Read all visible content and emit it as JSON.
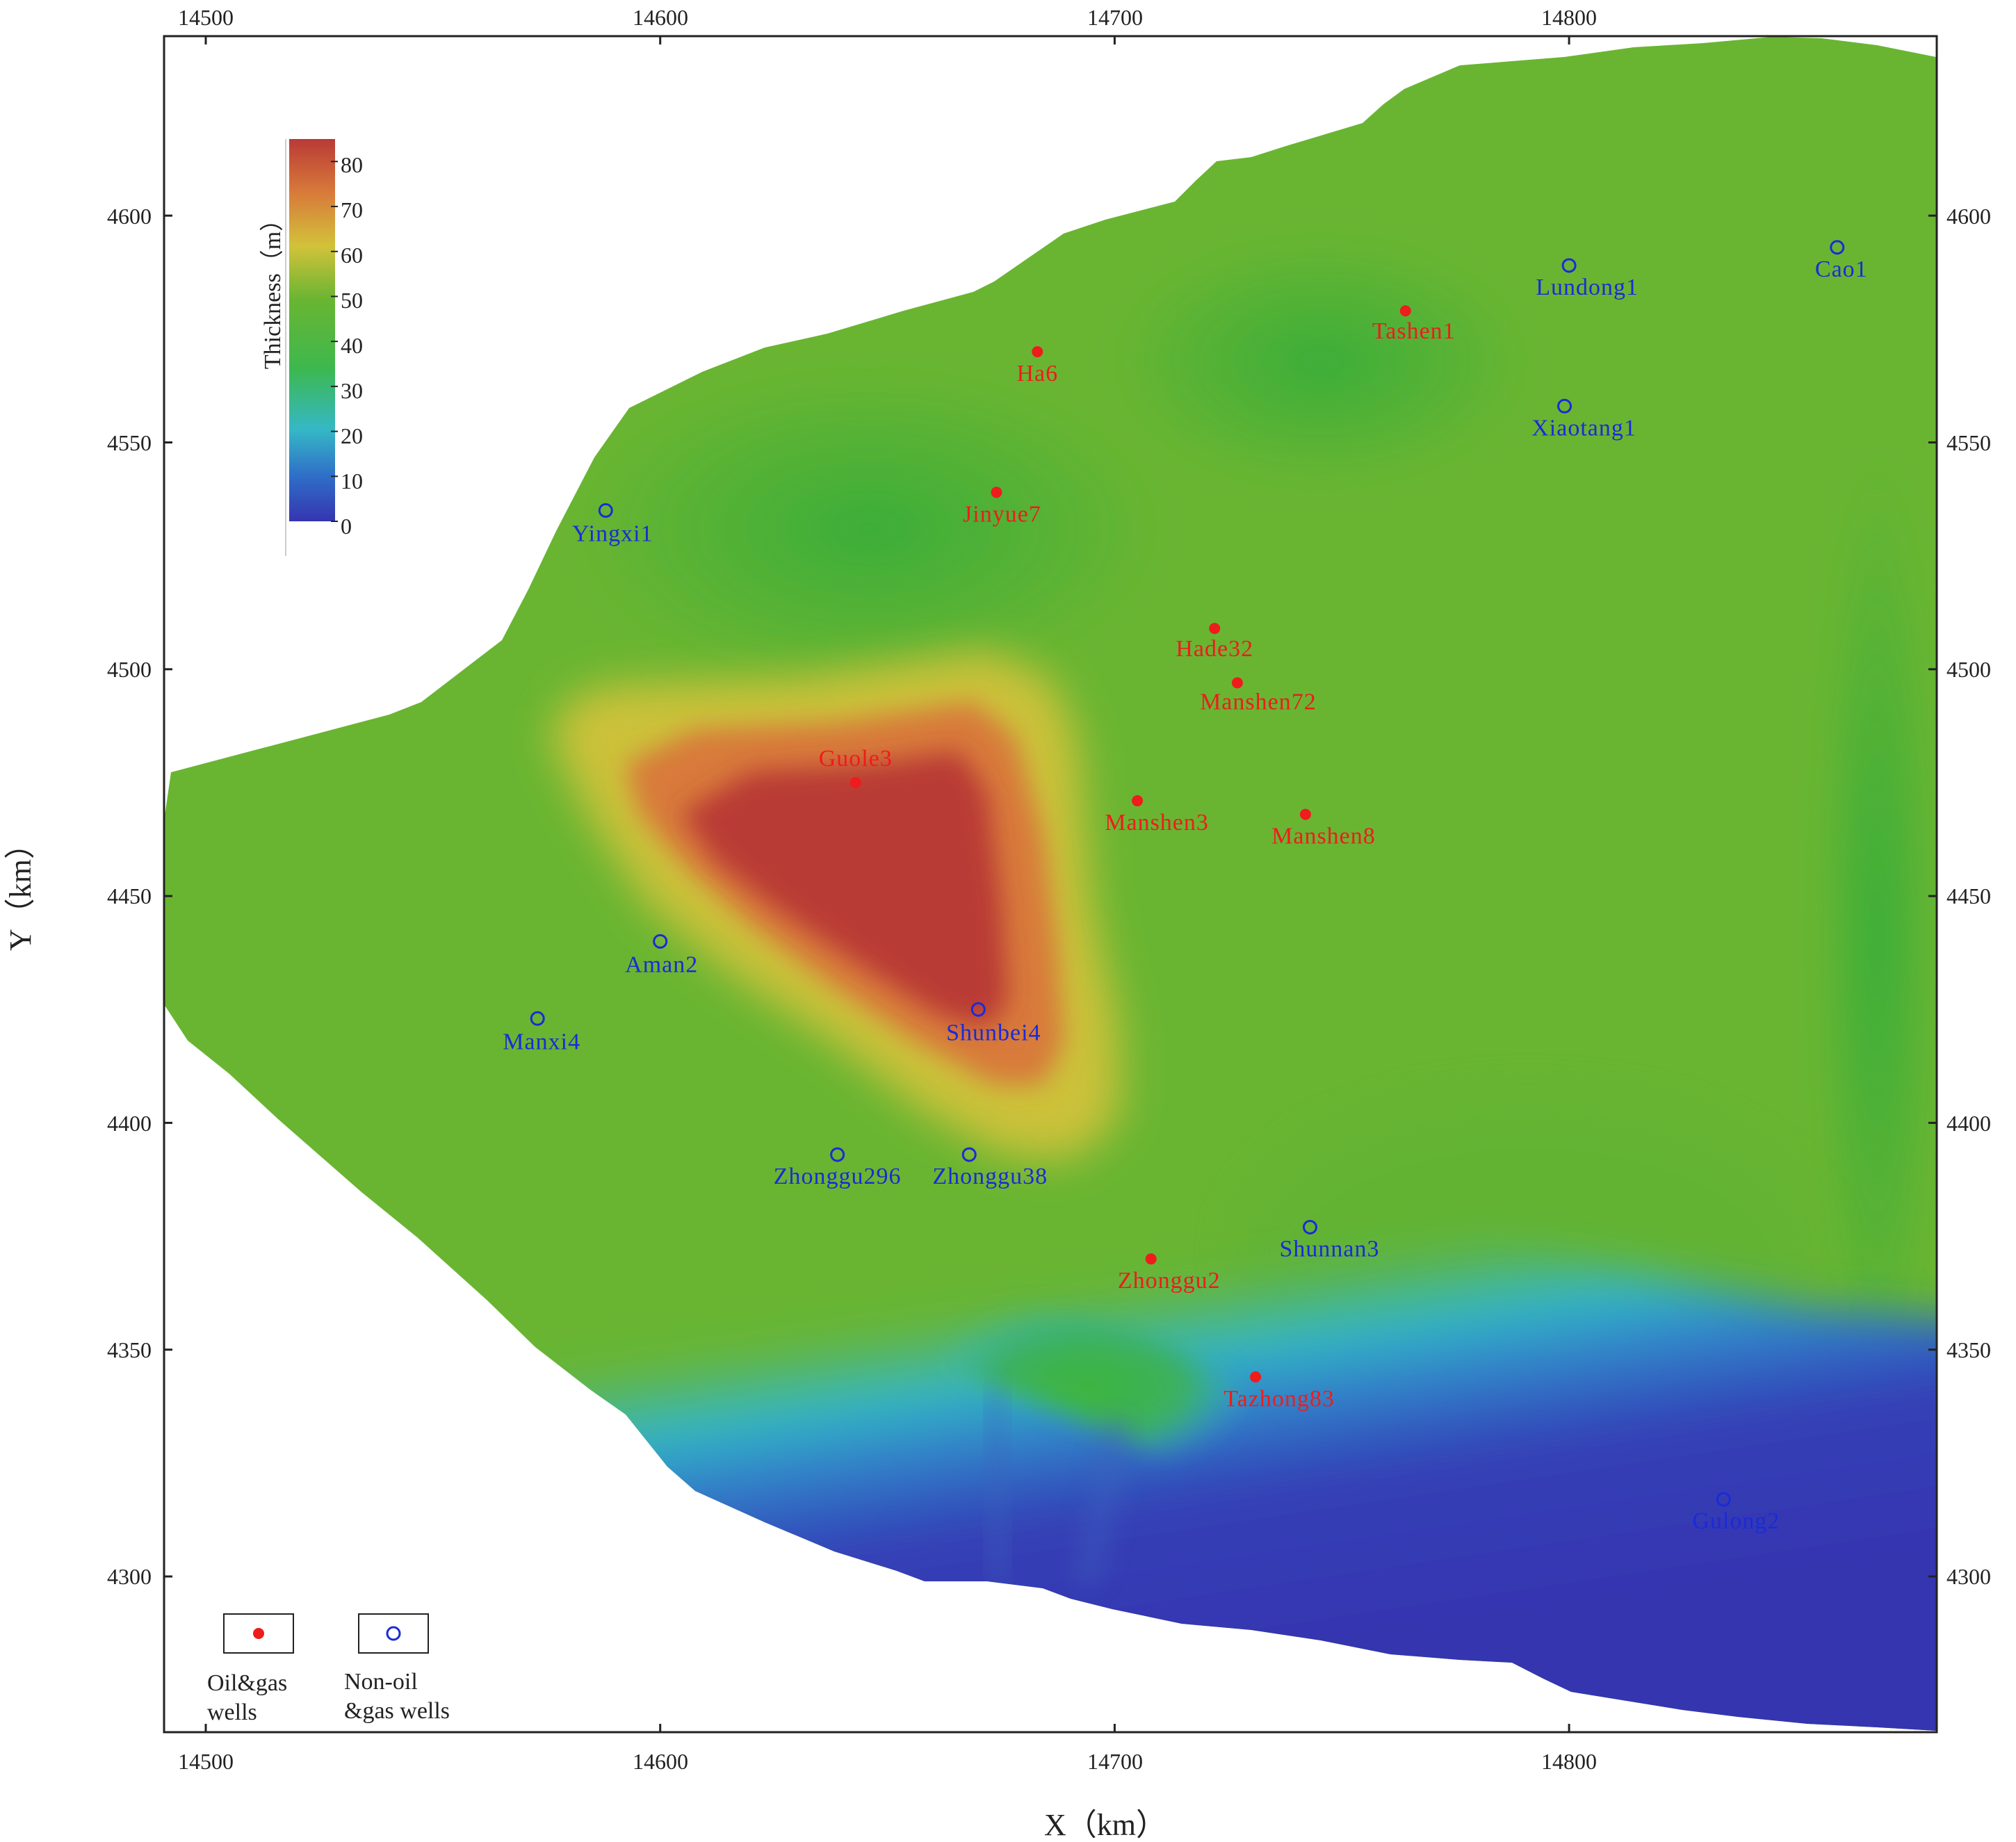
{
  "axes": {
    "x_title": "X（km）",
    "y_title": "Y（km）",
    "x_range": [
      14490,
      14880
    ],
    "y_range": [
      4265,
      4640
    ],
    "x_ticks": [
      "14500",
      "14600",
      "14700",
      "14800"
    ],
    "y_ticks": [
      "4300",
      "4350",
      "4400",
      "4450",
      "4500",
      "4550",
      "4600"
    ]
  },
  "colorbar": {
    "title": "Thickness（m）",
    "min": 0,
    "max": 85,
    "labels": [
      "0",
      "10",
      "20",
      "30",
      "40",
      "50",
      "60",
      "70",
      "80"
    ]
  },
  "colors": {
    "oil_gas": "#ee1c1c",
    "non_oil_gas": "#1a2bd6",
    "scale": [
      "#3535b0",
      "#2f6fc8",
      "#35b8c6",
      "#3db84e",
      "#69b532",
      "#d2c23a",
      "#d87a3a",
      "#b93a36"
    ]
  },
  "legend": {
    "oil_label_1": "Oil&gas",
    "oil_label_2": "wells",
    "non_label_1": "Non-oil",
    "non_label_2": "&gas wells"
  },
  "wells": [
    {
      "name": "Tashen1",
      "type": "oil",
      "x": 14764,
      "y": 4579
    },
    {
      "name": "Ha6",
      "type": "oil",
      "x": 14683,
      "y": 4570
    },
    {
      "name": "Jinyue7",
      "type": "oil",
      "x": 14674,
      "y": 4539
    },
    {
      "name": "Hade32",
      "type": "oil",
      "x": 14722,
      "y": 4509
    },
    {
      "name": "Manshen72",
      "type": "oil",
      "x": 14727,
      "y": 4497
    },
    {
      "name": "Guole3",
      "type": "oil",
      "x": 14643,
      "y": 4475
    },
    {
      "name": "Manshen3",
      "type": "oil",
      "x": 14705,
      "y": 4471
    },
    {
      "name": "Manshen8",
      "type": "oil",
      "x": 14742,
      "y": 4468
    },
    {
      "name": "Zhonggu2",
      "type": "oil",
      "x": 14708,
      "y": 4370
    },
    {
      "name": "Tazhong83",
      "type": "oil",
      "x": 14731,
      "y": 4344
    },
    {
      "name": "Lundong1",
      "type": "non",
      "x": 14800,
      "y": 4589
    },
    {
      "name": "Cao1",
      "type": "non",
      "x": 14859,
      "y": 4593
    },
    {
      "name": "Xiaotang1",
      "type": "non",
      "x": 14799,
      "y": 4558
    },
    {
      "name": "Yingxi1",
      "type": "non",
      "x": 14588,
      "y": 4535
    },
    {
      "name": "Aman2",
      "type": "non",
      "x": 14600,
      "y": 4440
    },
    {
      "name": "Manxi4",
      "type": "non",
      "x": 14573,
      "y": 4423
    },
    {
      "name": "Shunbei4",
      "type": "non",
      "x": 14670,
      "y": 4425
    },
    {
      "name": "Zhonggu296",
      "type": "non",
      "x": 14639,
      "y": 4393
    },
    {
      "name": "Zhonggu38",
      "type": "non",
      "x": 14668,
      "y": 4393
    },
    {
      "name": "Shunnan3",
      "type": "non",
      "x": 14743,
      "y": 4377
    },
    {
      "name": "Gulong2",
      "type": "non",
      "x": 14834,
      "y": 4317
    }
  ]
}
